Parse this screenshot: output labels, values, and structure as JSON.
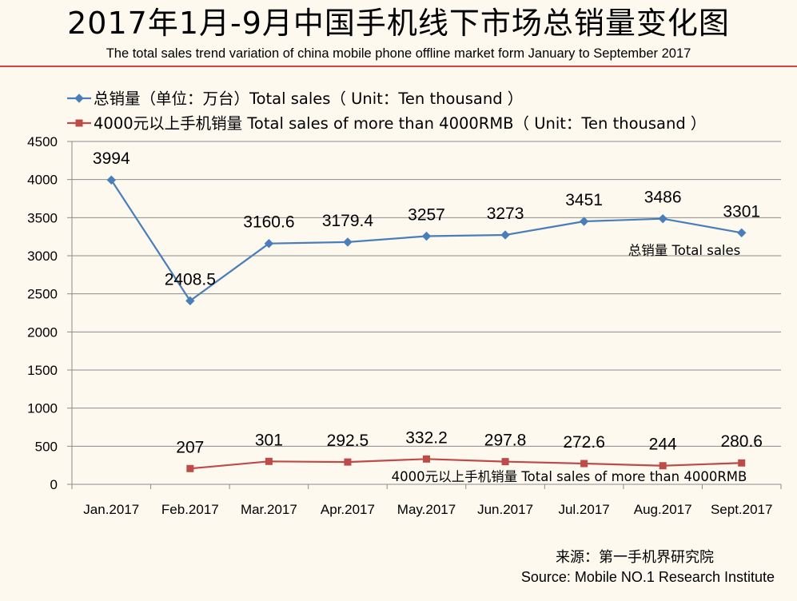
{
  "title": "2017年1月-9月中国手机线下市场总销量变化图",
  "subtitle": "The total sales trend variation  of china mobile phone offline market form January  to September 2017",
  "source_cn": "来源：第一手机界研究院",
  "source_en": "Source: Mobile NO.1 Research Institute",
  "chart_data": {
    "type": "line",
    "categories": [
      "Jan.2017",
      "Feb.2017",
      "Mar.2017",
      "Apr.2017",
      "May.2017",
      "Jun.2017",
      "Jul.2017",
      "Aug.2017",
      "Sept.2017"
    ],
    "yticks": [
      "0",
      "500",
      "1000",
      "1500",
      "2000",
      "2500",
      "3000",
      "3500",
      "4000",
      "4500"
    ],
    "ylim": [
      0,
      4500
    ],
    "grid": true,
    "legend_position": "top-left",
    "series": [
      {
        "name": "总销量（单位：万台）Total sales（  Unit：Ten thousand ）",
        "color": "#4a7ebb",
        "marker": "diamond",
        "values": [
          3994,
          2408.5,
          3160.6,
          3179.4,
          3257,
          3273,
          3451,
          3486,
          3301
        ],
        "labels": [
          "3994",
          "2408.5",
          "3160.6",
          "3179.4",
          "3257",
          "3273",
          "3451",
          "3486",
          "3301"
        ],
        "annotation": "总销量 Total sales"
      },
      {
        "name": "4000元以上手机销量 Total sales of more than 4000RMB（  Unit：Ten thousand ）",
        "color": "#be4b48",
        "marker": "square",
        "values": [
          null,
          207,
          301,
          292.5,
          332.2,
          297.8,
          272.6,
          244,
          280.6
        ],
        "labels": [
          "",
          "207",
          "301",
          "292.5",
          "332.2",
          "297.8",
          "272.6",
          "244",
          "280.6"
        ],
        "annotation": "4000元以上手机销量  Total sales of more than 4000RMB"
      }
    ]
  }
}
